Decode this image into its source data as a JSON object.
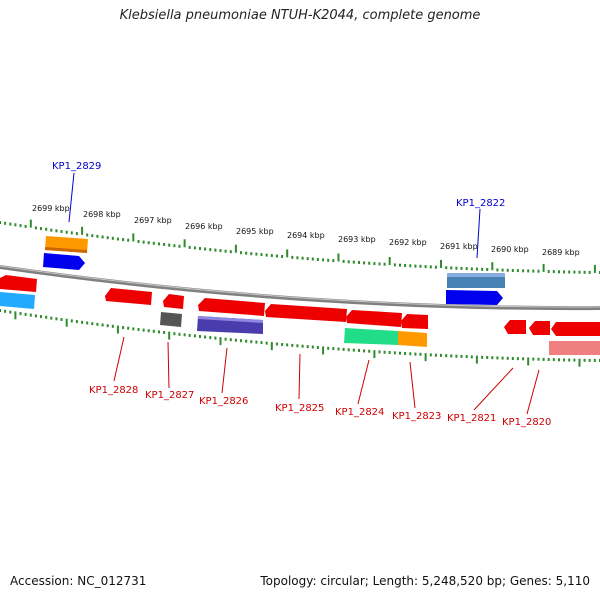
{
  "title": "Klebsiella pneumoniae NTUH-K2044, complete genome",
  "footer": {
    "accession": "Accession: NC_012731",
    "summary": "Topology: circular; Length: 5,248,520 bp; Genes: 5,110"
  },
  "colors": {
    "backbone": "#808080",
    "tick_track": "#2e8b2e",
    "forward_label": "#0000cc",
    "reverse_label": "#cc0000"
  },
  "scale_labels": [
    "2699 kbp",
    "2698 kbp",
    "2697 kbp",
    "2696 kbp",
    "2695 kbp",
    "2694 kbp",
    "2693 kbp",
    "2692 kbp",
    "2691 kbp",
    "2690 kbp",
    "2689 kbp"
  ],
  "gene_labels": {
    "forward": [
      "KP1_2829",
      "KP1_2822"
    ],
    "reverse": [
      "KP1_2828",
      "KP1_2827",
      "KP1_2826",
      "KP1_2825",
      "KP1_2824",
      "KP1_2823",
      "KP1_2821",
      "KP1_2820"
    ]
  }
}
